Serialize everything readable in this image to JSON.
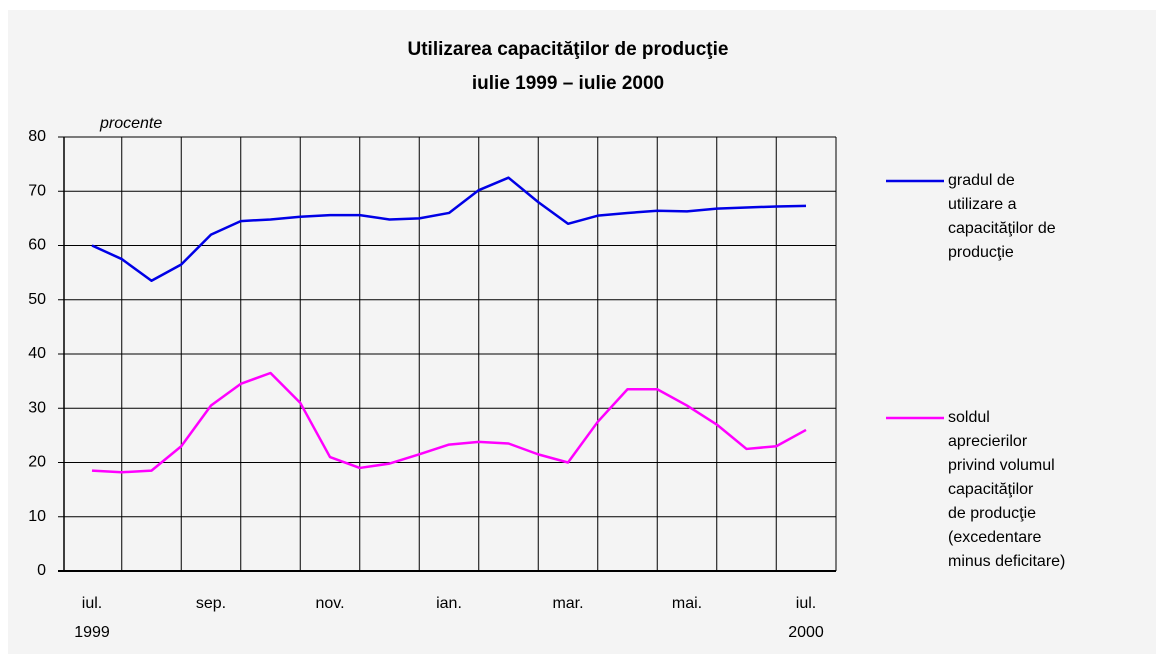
{
  "chart_data": {
    "type": "line",
    "title": [
      "Utilizarea capacităţilor de producţie",
      "iulie 1999 – iulie 2000"
    ],
    "y_unit_label": "procente",
    "categories": [
      "iul.",
      null,
      null,
      null,
      "sep.",
      null,
      null,
      null,
      "nov.",
      null,
      null,
      null,
      "ian.",
      null,
      null,
      null,
      "mar.",
      null,
      null,
      null,
      "mai.",
      null,
      null,
      null,
      "iul."
    ],
    "categories_line2": [
      "1999",
      null,
      null,
      null,
      null,
      null,
      null,
      null,
      null,
      null,
      null,
      null,
      null,
      null,
      null,
      null,
      null,
      null,
      null,
      null,
      null,
      null,
      null,
      null,
      "2000"
    ],
    "series": [
      {
        "name": "gradul de\nutilizare a\ncapacităţilor de\nproducţie",
        "color": "#0000e6",
        "values": [
          60,
          57.5,
          53.5,
          56.5,
          62,
          64.5,
          64.8,
          65.3,
          65.6,
          65.6,
          64.8,
          65,
          66,
          70.2,
          72.5,
          68,
          64,
          65.5,
          66,
          66.4,
          66.3,
          66.8,
          67,
          67.2,
          67.3
        ]
      },
      {
        "name": "soldul\naprecierilor\nprivind volumul\ncapacităţilor\nde producţie\n(excedentare\nminus deficitare)",
        "color": "#ff00ff",
        "values": [
          18.5,
          18.2,
          18.5,
          23,
          30.5,
          34.5,
          36.5,
          31,
          21,
          19,
          19.8,
          21.5,
          23.3,
          23.8,
          23.5,
          21.5,
          20,
          27.5,
          33.5,
          33.5,
          30.5,
          27,
          22.5,
          23,
          26
        ]
      }
    ],
    "ylim": [
      0,
      80
    ],
    "yticks": [
      0,
      10,
      20,
      30,
      40,
      50,
      60,
      70,
      80
    ],
    "grid": true
  }
}
